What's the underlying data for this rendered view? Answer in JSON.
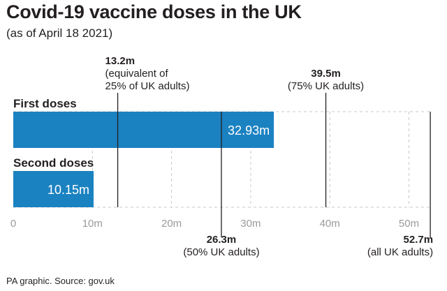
{
  "title": "Covid-19 vaccine doses in the UK",
  "subtitle": "(as of April 18 2021)",
  "source": "PA graphic. Source: gov.uk",
  "colors": {
    "bar": "#1b82c1",
    "text": "#231f20",
    "tick": "#9a9a9a",
    "grid": "#c8c8c8",
    "refline": "#231f20"
  },
  "chart_data": {
    "type": "bar",
    "orientation": "horizontal",
    "categories": [
      "First doses",
      "Second doses"
    ],
    "values": [
      32.93,
      10.15
    ],
    "value_labels": [
      "32.93m",
      "10.15m"
    ],
    "xlim": [
      0,
      52.7
    ],
    "xticks": [
      0,
      10,
      20,
      30,
      40,
      50
    ],
    "xtick_labels": [
      "0",
      "10m",
      "20m",
      "30m",
      "40m",
      "50m"
    ],
    "grid": true,
    "reference_lines": [
      {
        "value": 13.2,
        "label_value": "13.2m",
        "label_lines": [
          "(equivalent of",
          "25% of UK adults)"
        ],
        "position": "top"
      },
      {
        "value": 26.3,
        "label_value": "26.3m",
        "label_lines": [
          "(50% UK adults)"
        ],
        "position": "bottom"
      },
      {
        "value": 39.5,
        "label_value": "39.5m",
        "label_lines": [
          "(75% UK adults)"
        ],
        "position": "top"
      },
      {
        "value": 52.7,
        "label_value": "52.7m",
        "label_lines": [
          "(all UK adults)"
        ],
        "position": "bottom"
      }
    ]
  }
}
